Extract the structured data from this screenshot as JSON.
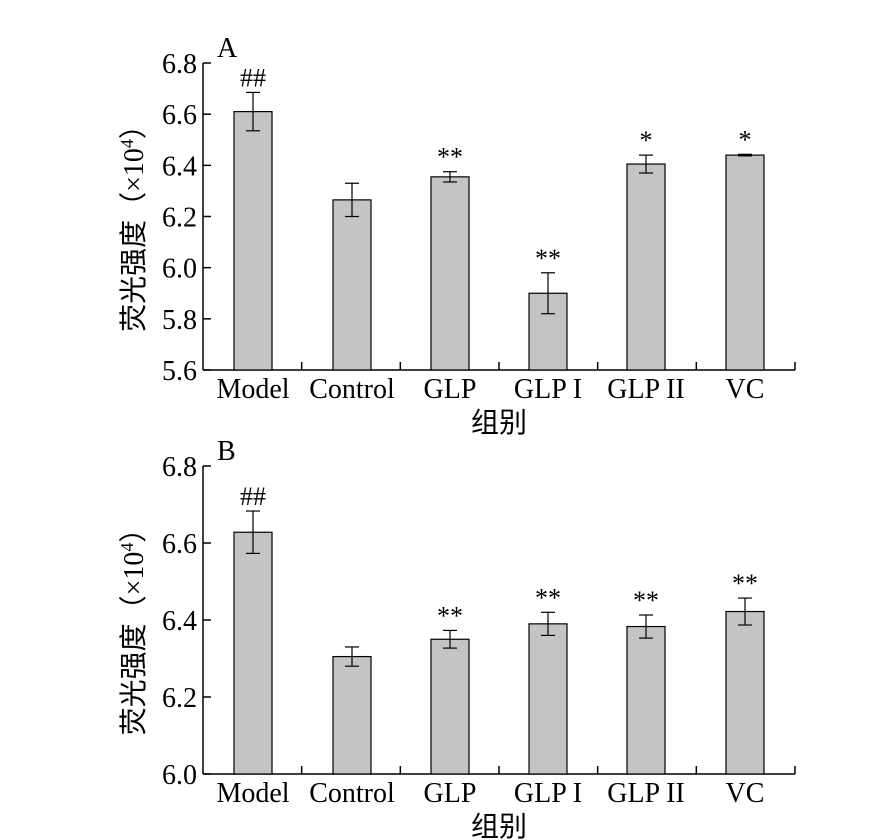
{
  "colors": {
    "bar_fill": "#c4c4c4",
    "bar_stroke": "#000000",
    "axis": "#000000"
  },
  "chart_data": [
    {
      "type": "bar",
      "panel_label": "A",
      "categories": [
        "Model",
        "Control",
        "GLP",
        "GLP I",
        "GLP II",
        "VC"
      ],
      "values": [
        6.61,
        6.265,
        6.355,
        5.9,
        6.405,
        6.44
      ],
      "errors": [
        0.075,
        0.065,
        0.02,
        0.08,
        0.035,
        0.003
      ],
      "annotations": [
        "##",
        "",
        "**",
        "**",
        "*",
        "*"
      ],
      "ylim": [
        5.6,
        6.8
      ],
      "yticks": [
        5.6,
        5.8,
        6.0,
        6.2,
        6.4,
        6.6,
        6.8
      ],
      "ytick_labels": [
        "5.6",
        "5.8",
        "6.0",
        "6.2",
        "6.4",
        "6.6",
        "6.8"
      ],
      "ylabel_main": "荧光强度（",
      "ylabel_x": "×",
      "ylabel_base": "10",
      "ylabel_exp": "4",
      "ylabel_close": "）",
      "xlabel": "组别",
      "grid": false
    },
    {
      "type": "bar",
      "panel_label": "B",
      "categories": [
        "Model",
        "Control",
        "GLP",
        "GLP I",
        "GLP II",
        "VC"
      ],
      "values": [
        6.628,
        6.305,
        6.35,
        6.39,
        6.383,
        6.422
      ],
      "errors": [
        0.055,
        0.025,
        0.023,
        0.03,
        0.03,
        0.035
      ],
      "annotations": [
        "##",
        "",
        "**",
        "**",
        "**",
        "**"
      ],
      "ylim": [
        6.0,
        6.8
      ],
      "yticks": [
        6.0,
        6.2,
        6.4,
        6.6,
        6.8
      ],
      "ytick_labels": [
        "6.0",
        "6.2",
        "6.4",
        "6.6",
        "6.8"
      ],
      "ylabel_main": "荧光强度（",
      "ylabel_x": "×",
      "ylabel_base": "10",
      "ylabel_exp": "4",
      "ylabel_close": "）",
      "xlabel": "组别",
      "grid": false
    }
  ]
}
